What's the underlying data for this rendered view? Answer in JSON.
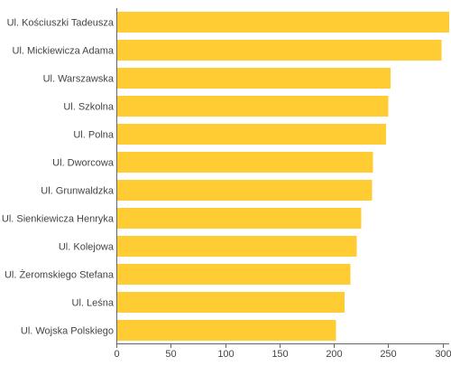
{
  "chart_data": {
    "type": "bar",
    "orientation": "horizontal",
    "title": "",
    "xlabel": "",
    "ylabel": "",
    "categories": [
      "Ul. Kościuszki Tadeusza",
      "Ul. Mickiewicza Adama",
      "Ul. Warszawska",
      "Ul. Szkolna",
      "Ul. Polna",
      "Ul. Dworcowa",
      "Ul. Grunwaldzka",
      "Ul. Sienkiewicza Henryka",
      "Ul. Kolejowa",
      "Ul. Żeromskiego Stefana",
      "Ul. Leśna",
      "Ul. Wojska Polskiego"
    ],
    "values": [
      306,
      299,
      252,
      250,
      248,
      236,
      235,
      225,
      221,
      215,
      210,
      202
    ],
    "xlim": [
      0,
      306
    ],
    "xticks": [
      "0",
      "50",
      "100",
      "150",
      "200",
      "250",
      "300"
    ],
    "grid": false,
    "legend": "none",
    "colors": {
      "bar": "#FFCC33",
      "axis": "#666666",
      "text": "#444444"
    }
  }
}
